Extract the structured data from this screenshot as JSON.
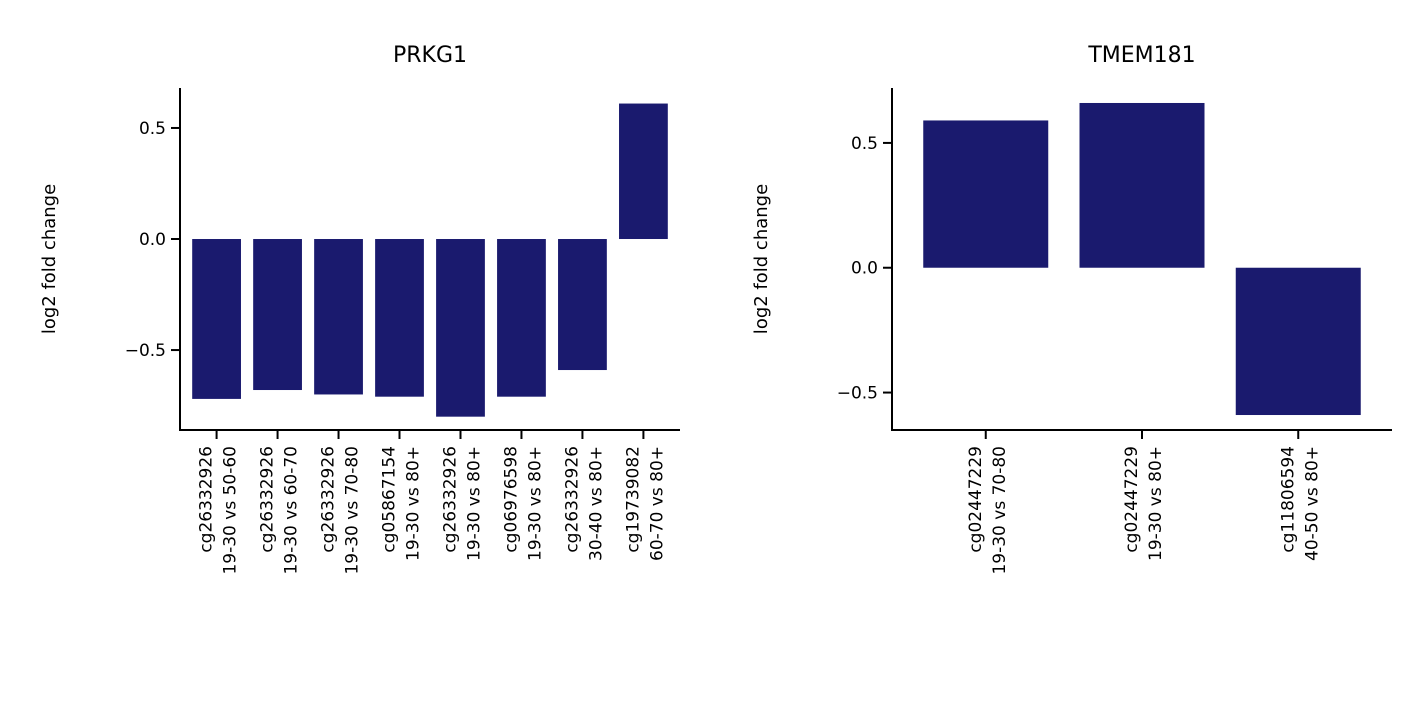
{
  "chart_data": [
    {
      "type": "bar",
      "title": "PRKG1",
      "ylabel": "log2 fold change",
      "xlabel": "",
      "ylim": [
        -0.86,
        0.68
      ],
      "yticks": [
        0.5,
        0.0,
        -0.5
      ],
      "ytick_labels": [
        "0.5",
        "0.0",
        "−0.5"
      ],
      "grid": false,
      "bar_color": "#1a1a6e",
      "categories": [
        [
          "cg26332926",
          "19-30 vs 50-60"
        ],
        [
          "cg26332926",
          "19-30 vs 60-70"
        ],
        [
          "cg26332926",
          "19-30 vs 70-80"
        ],
        [
          "cg05867154",
          "19-30 vs 80+"
        ],
        [
          "cg26332926",
          "19-30 vs 80+"
        ],
        [
          "cg06976598",
          "19-30 vs 80+"
        ],
        [
          "cg26332926",
          "30-40 vs 80+"
        ],
        [
          "cg19739082",
          "60-70 vs 80+"
        ]
      ],
      "values": [
        -0.72,
        -0.68,
        -0.7,
        -0.71,
        -0.8,
        -0.71,
        -0.59,
        0.61
      ]
    },
    {
      "type": "bar",
      "title": "TMEM181",
      "ylabel": "log2 fold change",
      "xlabel": "",
      "ylim": [
        -0.65,
        0.72
      ],
      "yticks": [
        0.5,
        0.0,
        -0.5
      ],
      "ytick_labels": [
        "0.5",
        "0.0",
        "−0.5"
      ],
      "grid": false,
      "bar_color": "#1a1a6e",
      "categories": [
        [
          "cg02447229",
          "19-30 vs 70-80"
        ],
        [
          "cg02447229",
          "19-30 vs 80+"
        ],
        [
          "cg11806594",
          "40-50 vs 80+"
        ]
      ],
      "values": [
        0.59,
        0.66,
        -0.59
      ]
    }
  ]
}
